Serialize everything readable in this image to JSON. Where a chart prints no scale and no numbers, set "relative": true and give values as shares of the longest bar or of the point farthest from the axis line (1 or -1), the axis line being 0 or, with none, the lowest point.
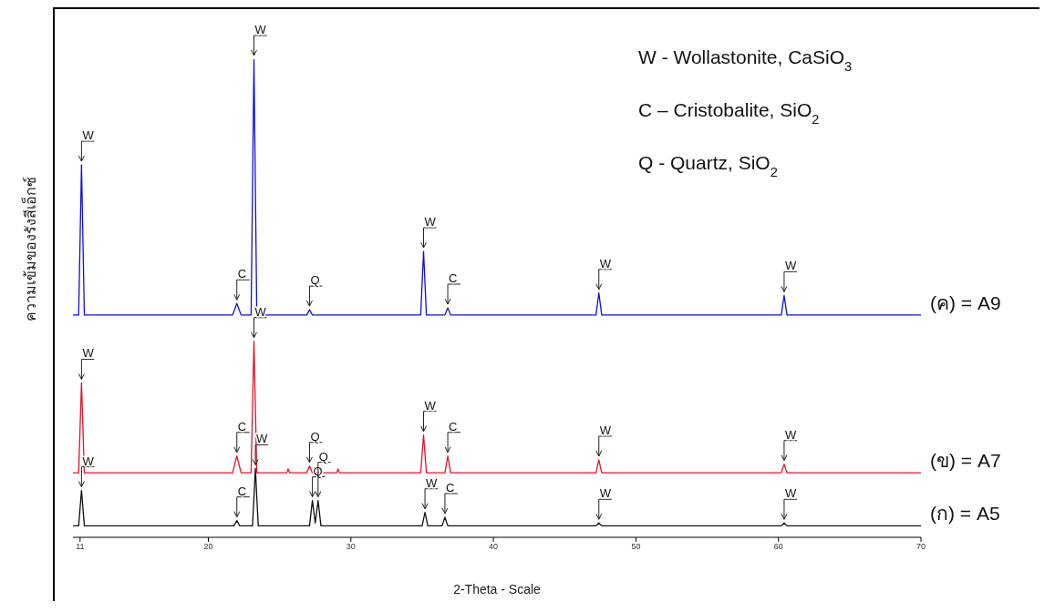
{
  "chart_data": {
    "type": "line",
    "relative": true,
    "xlabel": "2-Theta - Scale",
    "ylabel": "ความเข้มของรังสีเอ็กซ์",
    "xlim": [
      10.5,
      70
    ],
    "xticks": [
      11,
      20,
      30,
      40,
      50,
      60,
      70
    ],
    "series": [
      {
        "name": "(ค) = A9",
        "color": "#1010e0",
        "x": [
          10.5,
          10.9,
          11.1,
          11.3,
          21.7,
          22.0,
          22.3,
          23.0,
          23.2,
          23.4,
          26.9,
          27.1,
          27.3,
          34.9,
          35.1,
          35.3,
          36.6,
          36.8,
          37.0,
          47.2,
          47.4,
          47.6,
          60.2,
          60.4,
          60.6,
          70
        ],
        "values": [
          0.465,
          0.465,
          0.779,
          0.465,
          0.465,
          0.489,
          0.465,
          0.465,
          1,
          0.465,
          0.465,
          0.476,
          0.465,
          0.465,
          0.598,
          0.465,
          0.465,
          0.48,
          0.465,
          0.465,
          0.511,
          0.465,
          0.465,
          0.506,
          0.465,
          0.465
        ]
      },
      {
        "name": "(ข) = A7",
        "color": "#e8102a",
        "x": [
          10.5,
          10.9,
          11.1,
          11.3,
          21.7,
          22.0,
          22.3,
          23.0,
          23.2,
          23.4,
          25.5,
          25.6,
          25.7,
          26.9,
          27.1,
          27.3,
          29.0,
          29.1,
          29.2,
          34.9,
          35.1,
          35.3,
          36.6,
          36.8,
          37.0,
          47.2,
          47.4,
          47.6,
          60.2,
          60.4,
          60.6,
          70
        ],
        "values": [
          0.135,
          0.135,
          0.323,
          0.135,
          0.135,
          0.17,
          0.135,
          0.135,
          0.41,
          0.135,
          0.135,
          0.143,
          0.135,
          0.135,
          0.149,
          0.135,
          0.135,
          0.143,
          0.135,
          0.135,
          0.214,
          0.135,
          0.135,
          0.17,
          0.135,
          0.135,
          0.162,
          0.135,
          0.135,
          0.153,
          0.135,
          0.135
        ]
      },
      {
        "name": "(ก) = A5",
        "color": "#111111",
        "x": [
          10.5,
          10.9,
          11.1,
          11.3,
          21.8,
          22.0,
          22.2,
          23.1,
          23.3,
          23.5,
          27.1,
          27.3,
          27.5,
          27.7,
          27.9,
          35.0,
          35.2,
          35.4,
          36.4,
          36.6,
          36.8,
          47.2,
          47.4,
          47.6,
          60.2,
          60.4,
          60.6,
          70
        ],
        "values": [
          0.024,
          0.024,
          0.098,
          0.024,
          0.024,
          0.035,
          0.024,
          0.024,
          0.144,
          0.024,
          0.024,
          0.077,
          0.03,
          0.077,
          0.024,
          0.024,
          0.052,
          0.024,
          0.024,
          0.042,
          0.024,
          0.024,
          0.03,
          0.024,
          0.024,
          0.03,
          0.024,
          0.024
        ]
      }
    ],
    "annotations": [
      "W - Wollastonite, CaSiO$_{3}$",
      "C – Cristobalite, SiO$_{2}$",
      "Q - Quartz, SiO$_{2}$",
      {
        "text": "W",
        "x": 11.1,
        "y": 0.779
      },
      {
        "text": "C",
        "x": 22.0,
        "y": 0.489
      },
      {
        "text": "W",
        "x": 23.2,
        "y": 1
      },
      {
        "text": "Q",
        "x": 27.1,
        "y": 0.476
      },
      {
        "text": "W",
        "x": 35.1,
        "y": 0.598
      },
      {
        "text": "C",
        "x": 36.8,
        "y": 0.48
      },
      {
        "text": "W",
        "x": 47.4,
        "y": 0.511
      },
      {
        "text": "W",
        "x": 60.4,
        "y": 0.506
      },
      {
        "text": "W",
        "x": 11.1,
        "y": 0.323
      },
      {
        "text": "C",
        "x": 22.0,
        "y": 0.17
      },
      {
        "text": "W",
        "x": 23.2,
        "y": 0.41
      },
      {
        "text": "Q",
        "x": 27.1,
        "y": 0.149
      },
      {
        "text": "W",
        "x": 35.1,
        "y": 0.214
      },
      {
        "text": "C",
        "x": 36.8,
        "y": 0.17
      },
      {
        "text": "W",
        "x": 47.4,
        "y": 0.162
      },
      {
        "text": "W",
        "x": 60.4,
        "y": 0.153
      },
      {
        "text": "W",
        "x": 11.1,
        "y": 0.098
      },
      {
        "text": "C",
        "x": 22.0,
        "y": 0.035
      },
      {
        "text": "W",
        "x": 23.3,
        "y": 0.144
      },
      {
        "text": "Q",
        "x": 27.3,
        "y": 0.077
      },
      {
        "text": "Q",
        "x": 27.7,
        "y": 0.077
      },
      {
        "text": "W",
        "x": 35.2,
        "y": 0.052
      },
      {
        "text": "C",
        "x": 36.6,
        "y": 0.042
      },
      {
        "text": "W",
        "x": 47.4,
        "y": 0.03
      },
      {
        "text": "W",
        "x": 60.4,
        "y": 0.03
      }
    ]
  }
}
